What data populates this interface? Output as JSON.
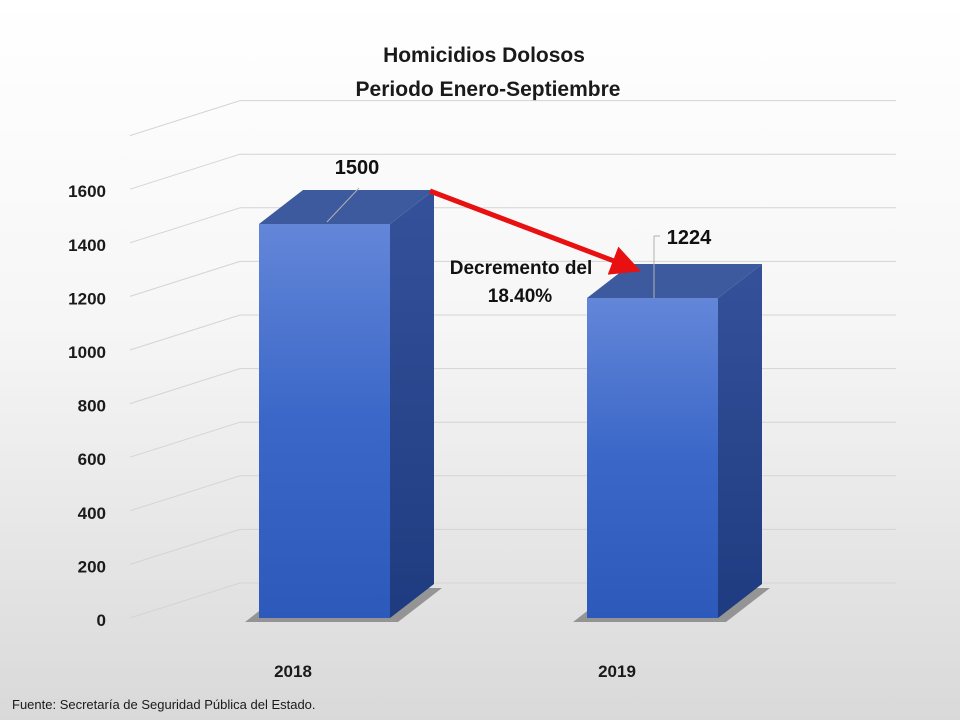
{
  "chart_data": {
    "type": "bar",
    "title": "Homicidios Dolosos",
    "subtitle": "Periodo Enero-Septiembre",
    "categories": [
      "2018",
      "2019"
    ],
    "values": [
      1500,
      1224
    ],
    "value_labels": [
      "1500",
      "1224"
    ],
    "y_ticks": [
      "0",
      "200",
      "400",
      "600",
      "800",
      "1000",
      "1200",
      "1400",
      "1600"
    ],
    "ylim": [
      0,
      1800
    ],
    "grid": true,
    "legend": "none",
    "annotation": {
      "line1": "Decremento del",
      "line2": "18.40%"
    },
    "colors": {
      "bar_front": "#3a67c8",
      "bar_side": "#24408a",
      "bar_top": "#3e5a9e",
      "arrow": "#e81010"
    }
  },
  "source": "Fuente: Secretaría de Seguridad Pública del Estado."
}
